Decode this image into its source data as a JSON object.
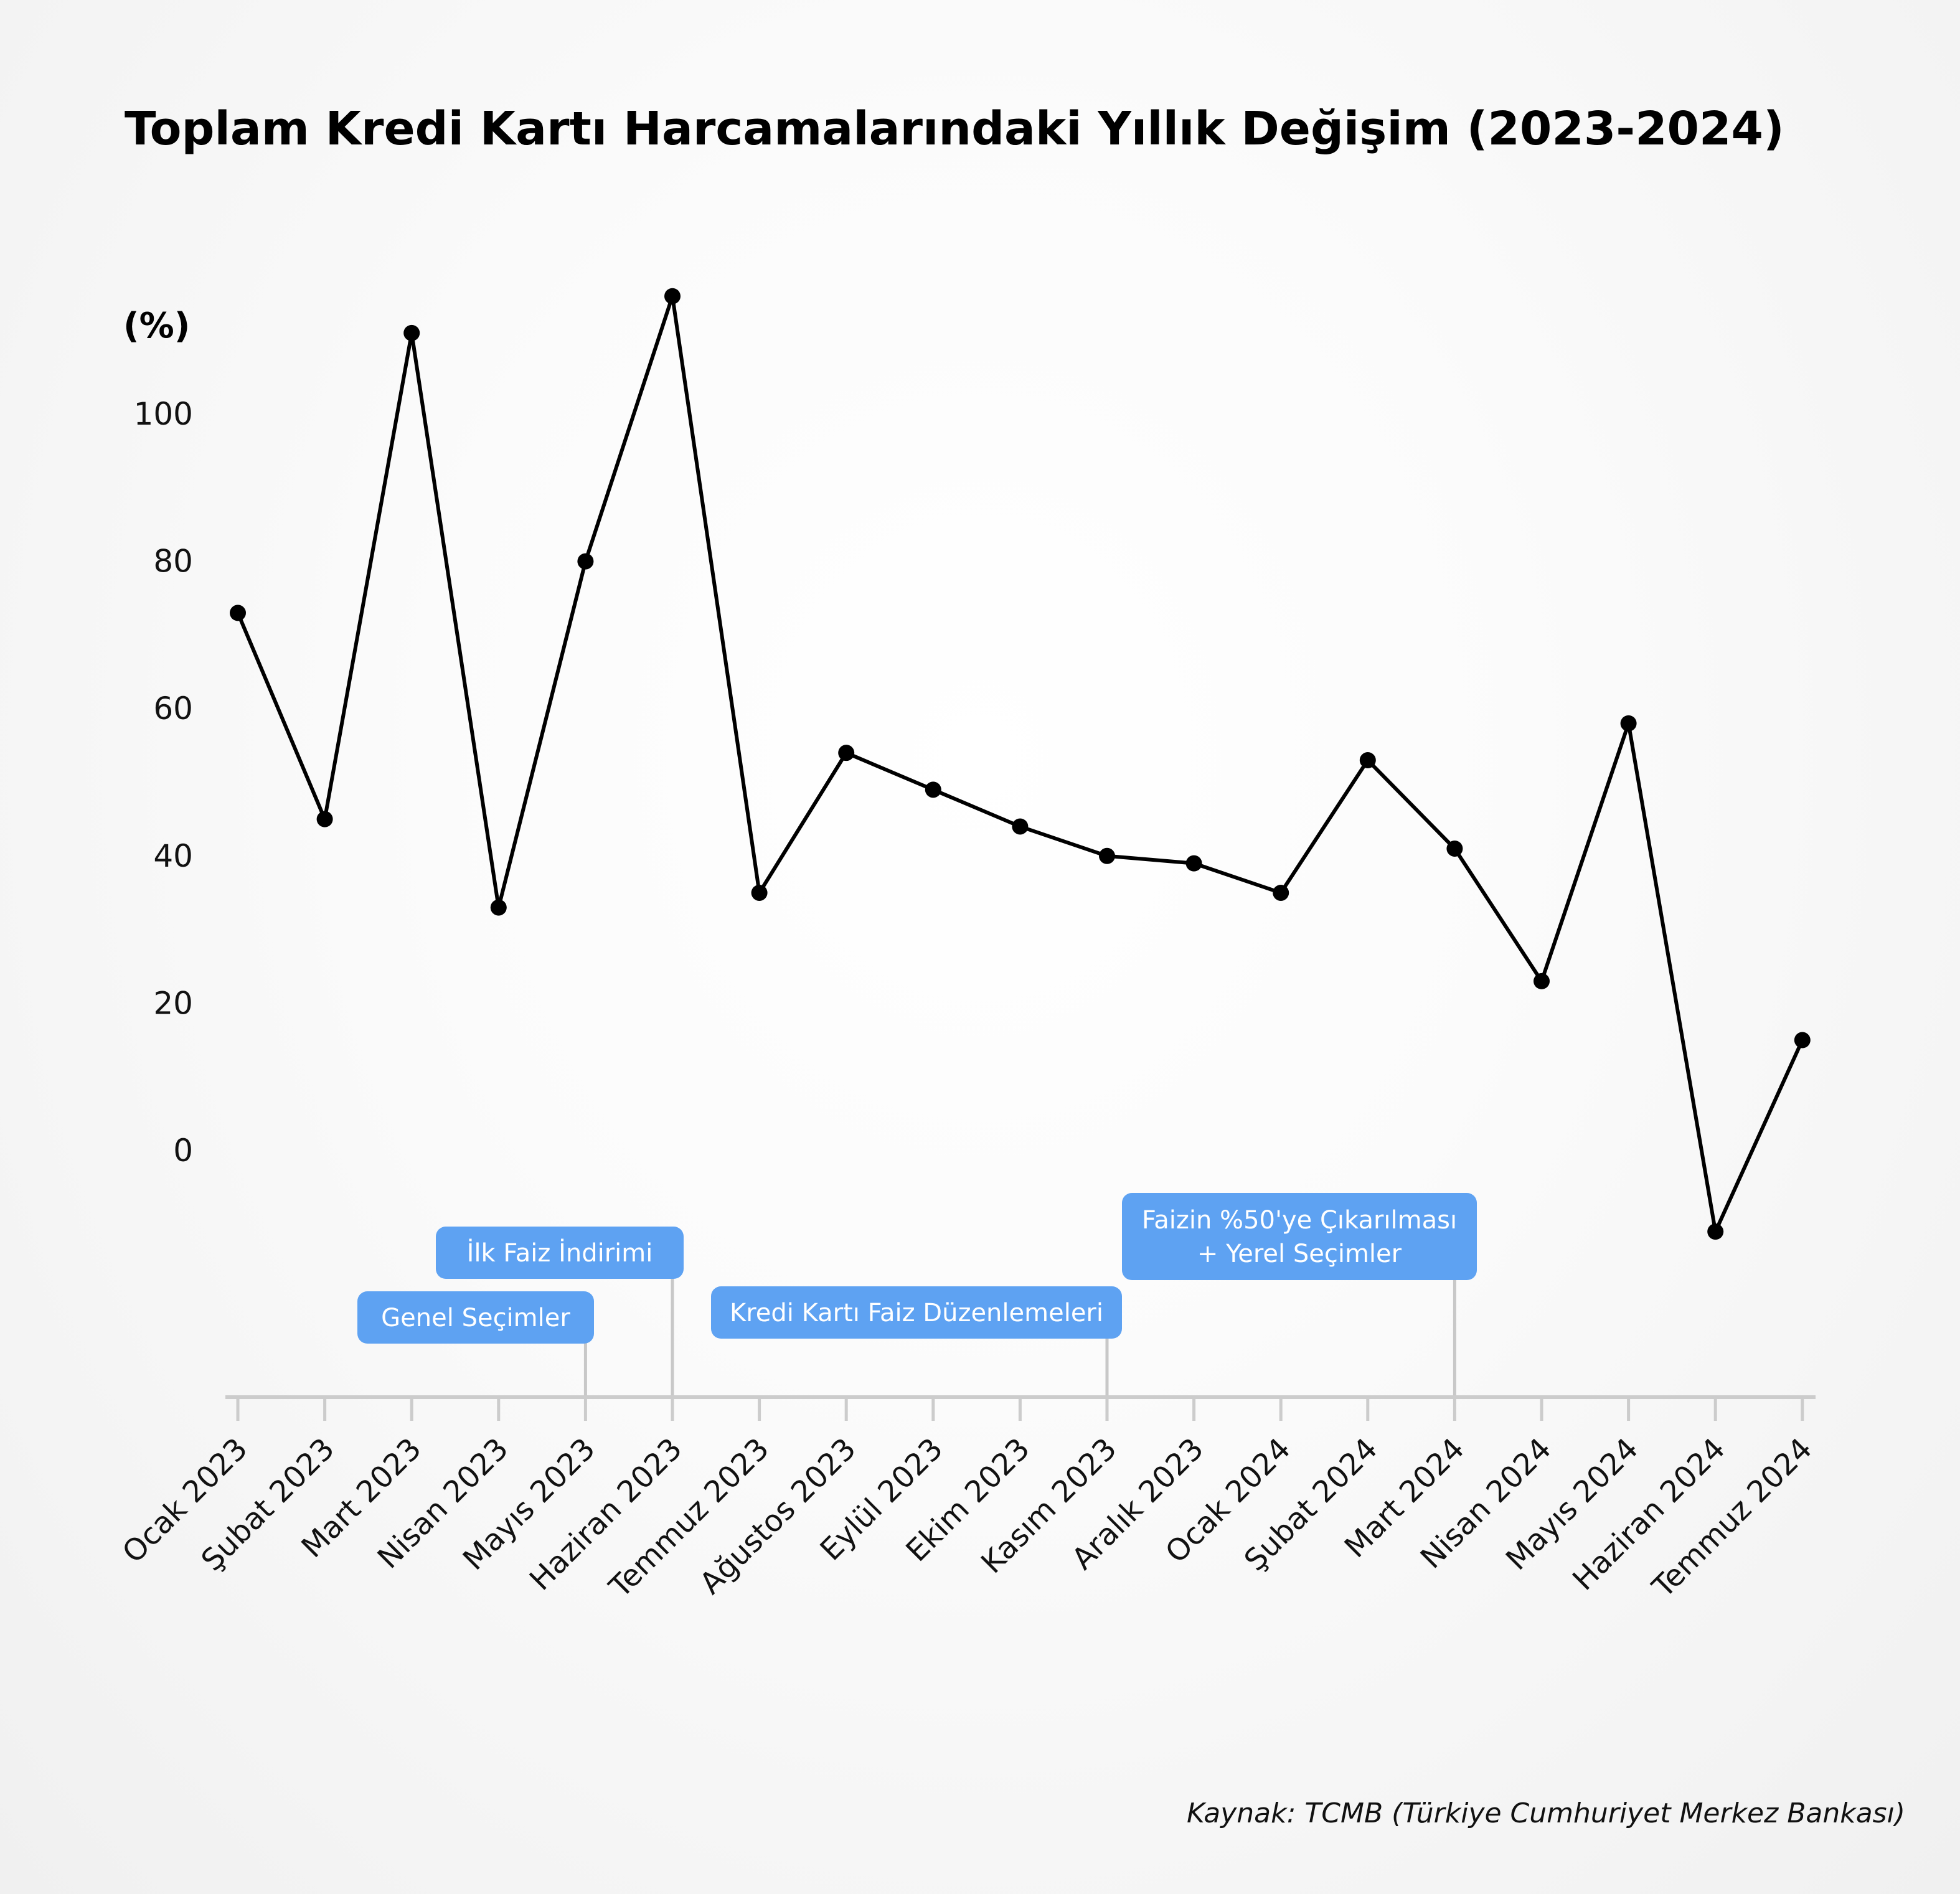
{
  "chart_data": {
    "type": "line",
    "title": "Toplam Kredi Kartı Harcamalarındaki Yıllık Değişim (2023-2024)",
    "ylabel": "(%)",
    "xlabel": "",
    "ylim": [
      -33,
      115
    ],
    "yticks": [
      0,
      20,
      40,
      60,
      80,
      100
    ],
    "categories": [
      "Ocak 2023",
      "Şubat 2023",
      "Mart 2023",
      "Nisan 2023",
      "Mayıs 2023",
      "Haziran 2023",
      "Temmuz 2023",
      "Ağustos 2023",
      "Eylül 2023",
      "Ekim 2023",
      "Kasım 2023",
      "Aralık 2023",
      "Ocak 2024",
      "Şubat 2024",
      "Mart 2024",
      "Nisan 2024",
      "Mayıs 2024",
      "Haziran 2024",
      "Temmuz 2024"
    ],
    "series": [
      {
        "values": [
          73,
          45,
          111,
          33,
          80,
          116,
          35,
          54,
          49,
          44,
          40,
          39,
          35,
          53,
          41,
          23,
          58,
          -11,
          15
        ]
      }
    ],
    "grid": false,
    "line_color": "#000000",
    "annotation_color": "#5ea2f2",
    "annotations": [
      {
        "lines": [
          "Genel Seçimler"
        ],
        "category_index": 4
      },
      {
        "lines": [
          "İlk Faiz İndirimi"
        ],
        "category_index": 5
      },
      {
        "lines": [
          "Kredi Kartı Faiz Düzenlemeleri"
        ],
        "category_index": 10
      },
      {
        "lines": [
          "Faizin %50'ye Çıkarılması",
          "+ Yerel Seçimler"
        ],
        "category_index": 14
      }
    ],
    "source": "Kaynak: TCMB (Türkiye Cumhuriyet Merkez Bankası)"
  }
}
